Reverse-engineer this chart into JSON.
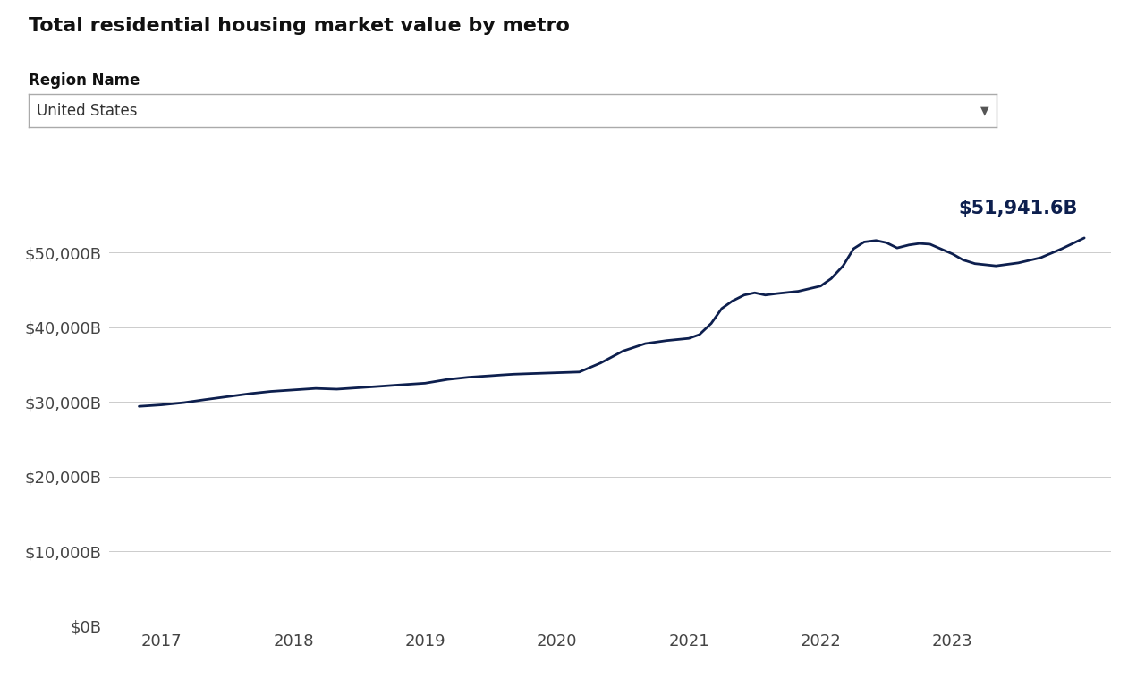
{
  "title": "Total residential housing market value by metro",
  "region_label": "Region Name",
  "region_value": "United States",
  "line_color": "#0d1f4e",
  "background_color": "#ffffff",
  "annotation_text": "$51,941.6B",
  "annotation_color": "#0d1f4e",
  "ytick_labels": [
    "$0B",
    "$10,000B",
    "$20,000B",
    "$30,000B",
    "$40,000B",
    "$50,000B"
  ],
  "ytick_values": [
    0,
    10000,
    20000,
    30000,
    40000,
    50000
  ],
  "xtick_labels": [
    "2017",
    "2018",
    "2019",
    "2020",
    "2021",
    "2022",
    "2023"
  ],
  "xtick_values": [
    2017,
    2018,
    2019,
    2020,
    2021,
    2022,
    2023
  ],
  "ylim": [
    0,
    58000
  ],
  "xlim_start": 2016.6,
  "xlim_end": 2024.2,
  "x": [
    2016.83,
    2017.0,
    2017.17,
    2017.33,
    2017.5,
    2017.67,
    2017.83,
    2018.0,
    2018.17,
    2018.33,
    2018.5,
    2018.67,
    2018.83,
    2019.0,
    2019.17,
    2019.33,
    2019.5,
    2019.58,
    2019.67,
    2019.83,
    2020.0,
    2020.17,
    2020.33,
    2020.5,
    2020.67,
    2020.83,
    2021.0,
    2021.08,
    2021.17,
    2021.25,
    2021.33,
    2021.42,
    2021.5,
    2021.58,
    2021.67,
    2021.83,
    2022.0,
    2022.08,
    2022.17,
    2022.25,
    2022.33,
    2022.42,
    2022.5,
    2022.58,
    2022.67,
    2022.75,
    2022.83,
    2023.0,
    2023.08,
    2023.17,
    2023.33,
    2023.5,
    2023.67,
    2023.83,
    2024.0
  ],
  "y": [
    29400,
    29600,
    29900,
    30300,
    30700,
    31100,
    31400,
    31600,
    31800,
    31700,
    31900,
    32100,
    32300,
    32500,
    33000,
    33300,
    33500,
    33600,
    33700,
    33800,
    33900,
    34000,
    35200,
    36800,
    37800,
    38200,
    38500,
    39000,
    40500,
    42500,
    43500,
    44300,
    44600,
    44300,
    44500,
    44800,
    45500,
    46500,
    48200,
    50500,
    51400,
    51600,
    51300,
    50600,
    51000,
    51200,
    51100,
    49800,
    49000,
    48500,
    48200,
    48600,
    49300,
    50500,
    51941.6
  ]
}
